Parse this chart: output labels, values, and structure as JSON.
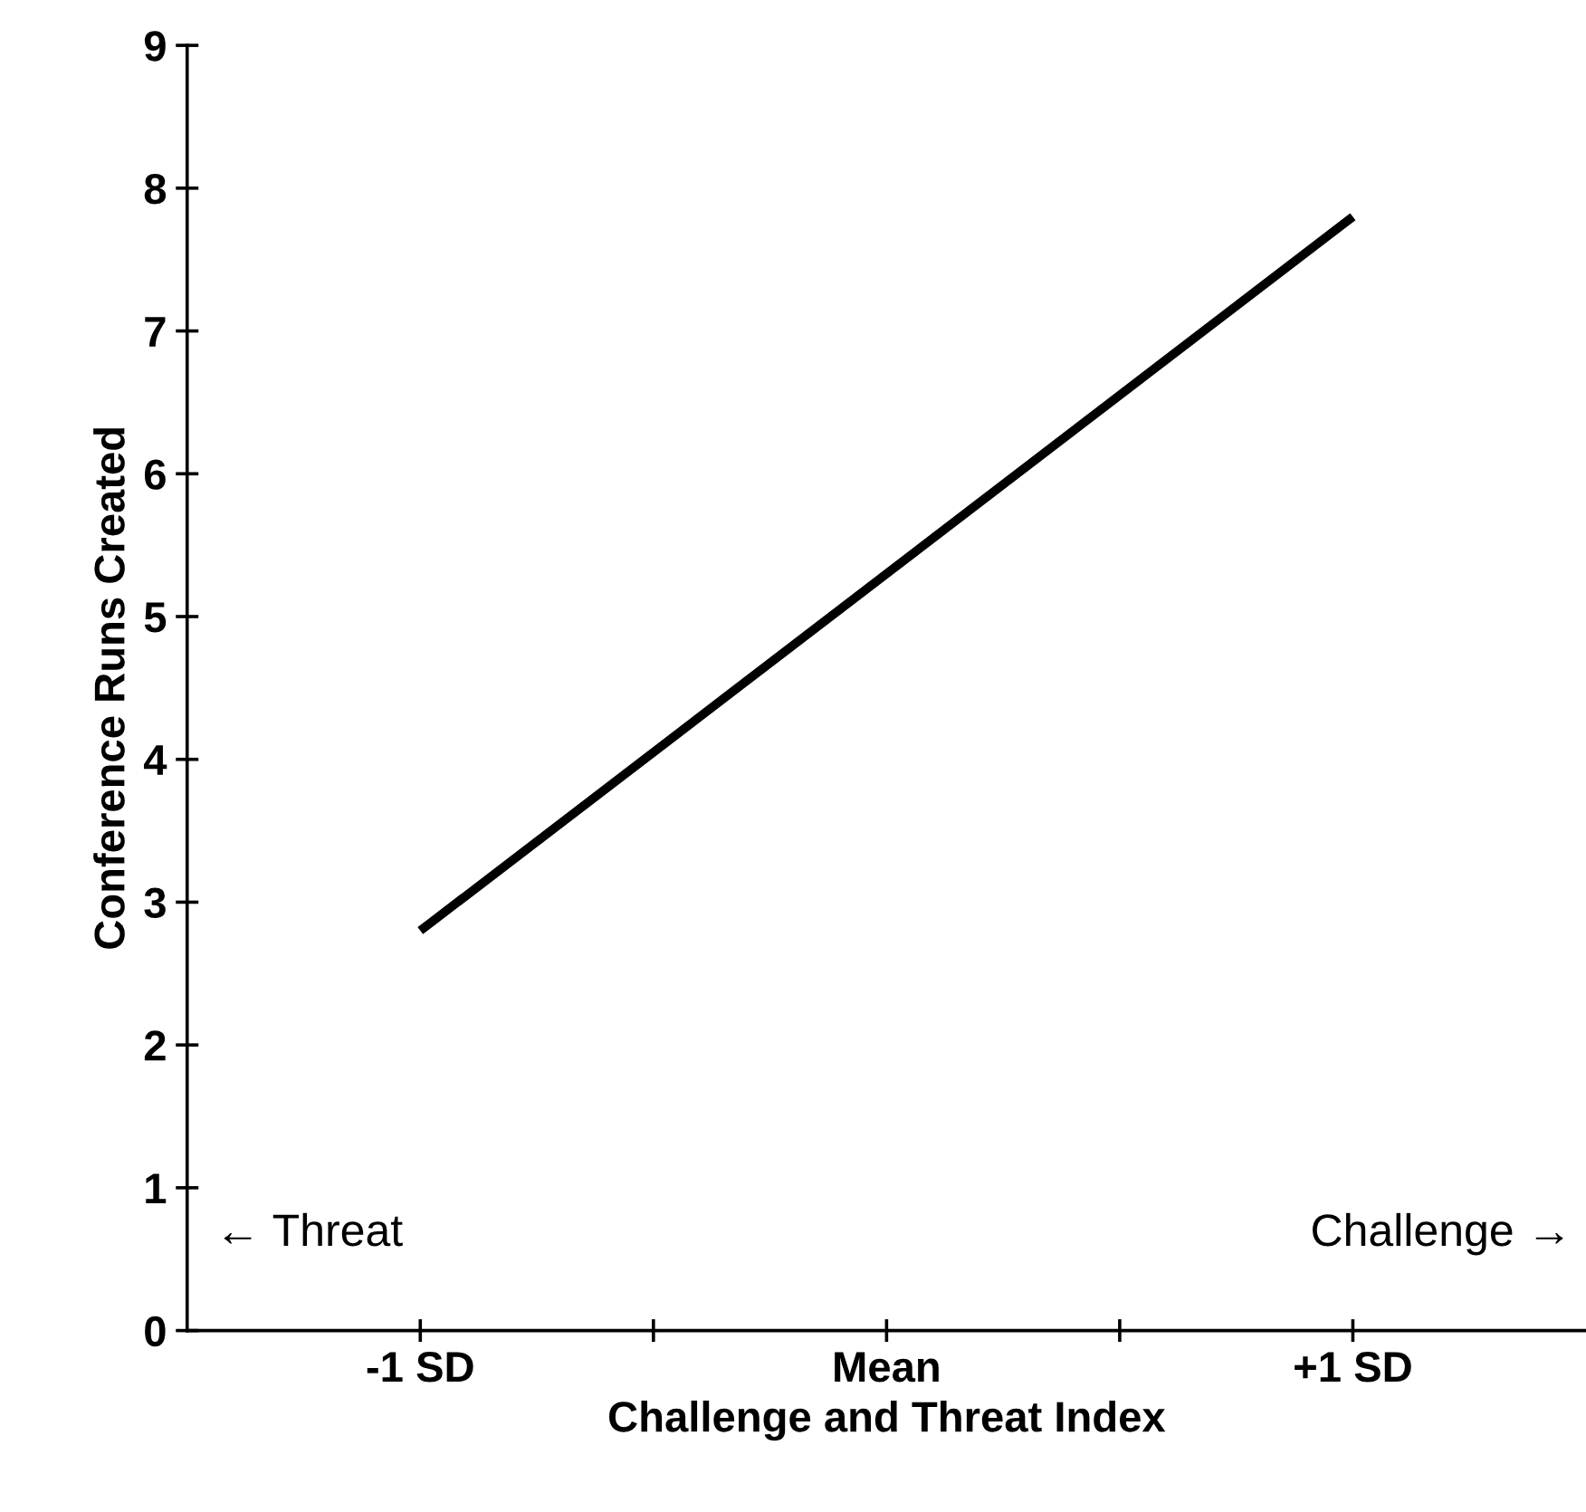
{
  "chart_data": {
    "type": "line",
    "xlabel": "Challenge and Threat Index",
    "ylabel": "Conference Runs Created",
    "x": [
      -1,
      1
    ],
    "series": [
      {
        "color": "#000000",
        "values": [
          2.8,
          7.8
        ]
      }
    ],
    "xlim": [
      -1.5,
      1.5
    ],
    "xticks": [
      {
        "value": -1,
        "label": "-1 SD"
      },
      {
        "value": -0.5,
        "label": null
      },
      {
        "value": 0,
        "label": "Mean"
      },
      {
        "value": 0.5,
        "label": null
      },
      {
        "value": 1,
        "label": "+1 SD"
      }
    ],
    "ylim": [
      0,
      9
    ],
    "yticks": [
      0,
      1,
      2,
      3,
      4,
      5,
      6,
      7,
      8,
      9
    ],
    "grid": false,
    "legend": false,
    "marker": "none",
    "line_style": "solid",
    "annotations": [
      "← Threat",
      "Challenge →"
    ]
  }
}
